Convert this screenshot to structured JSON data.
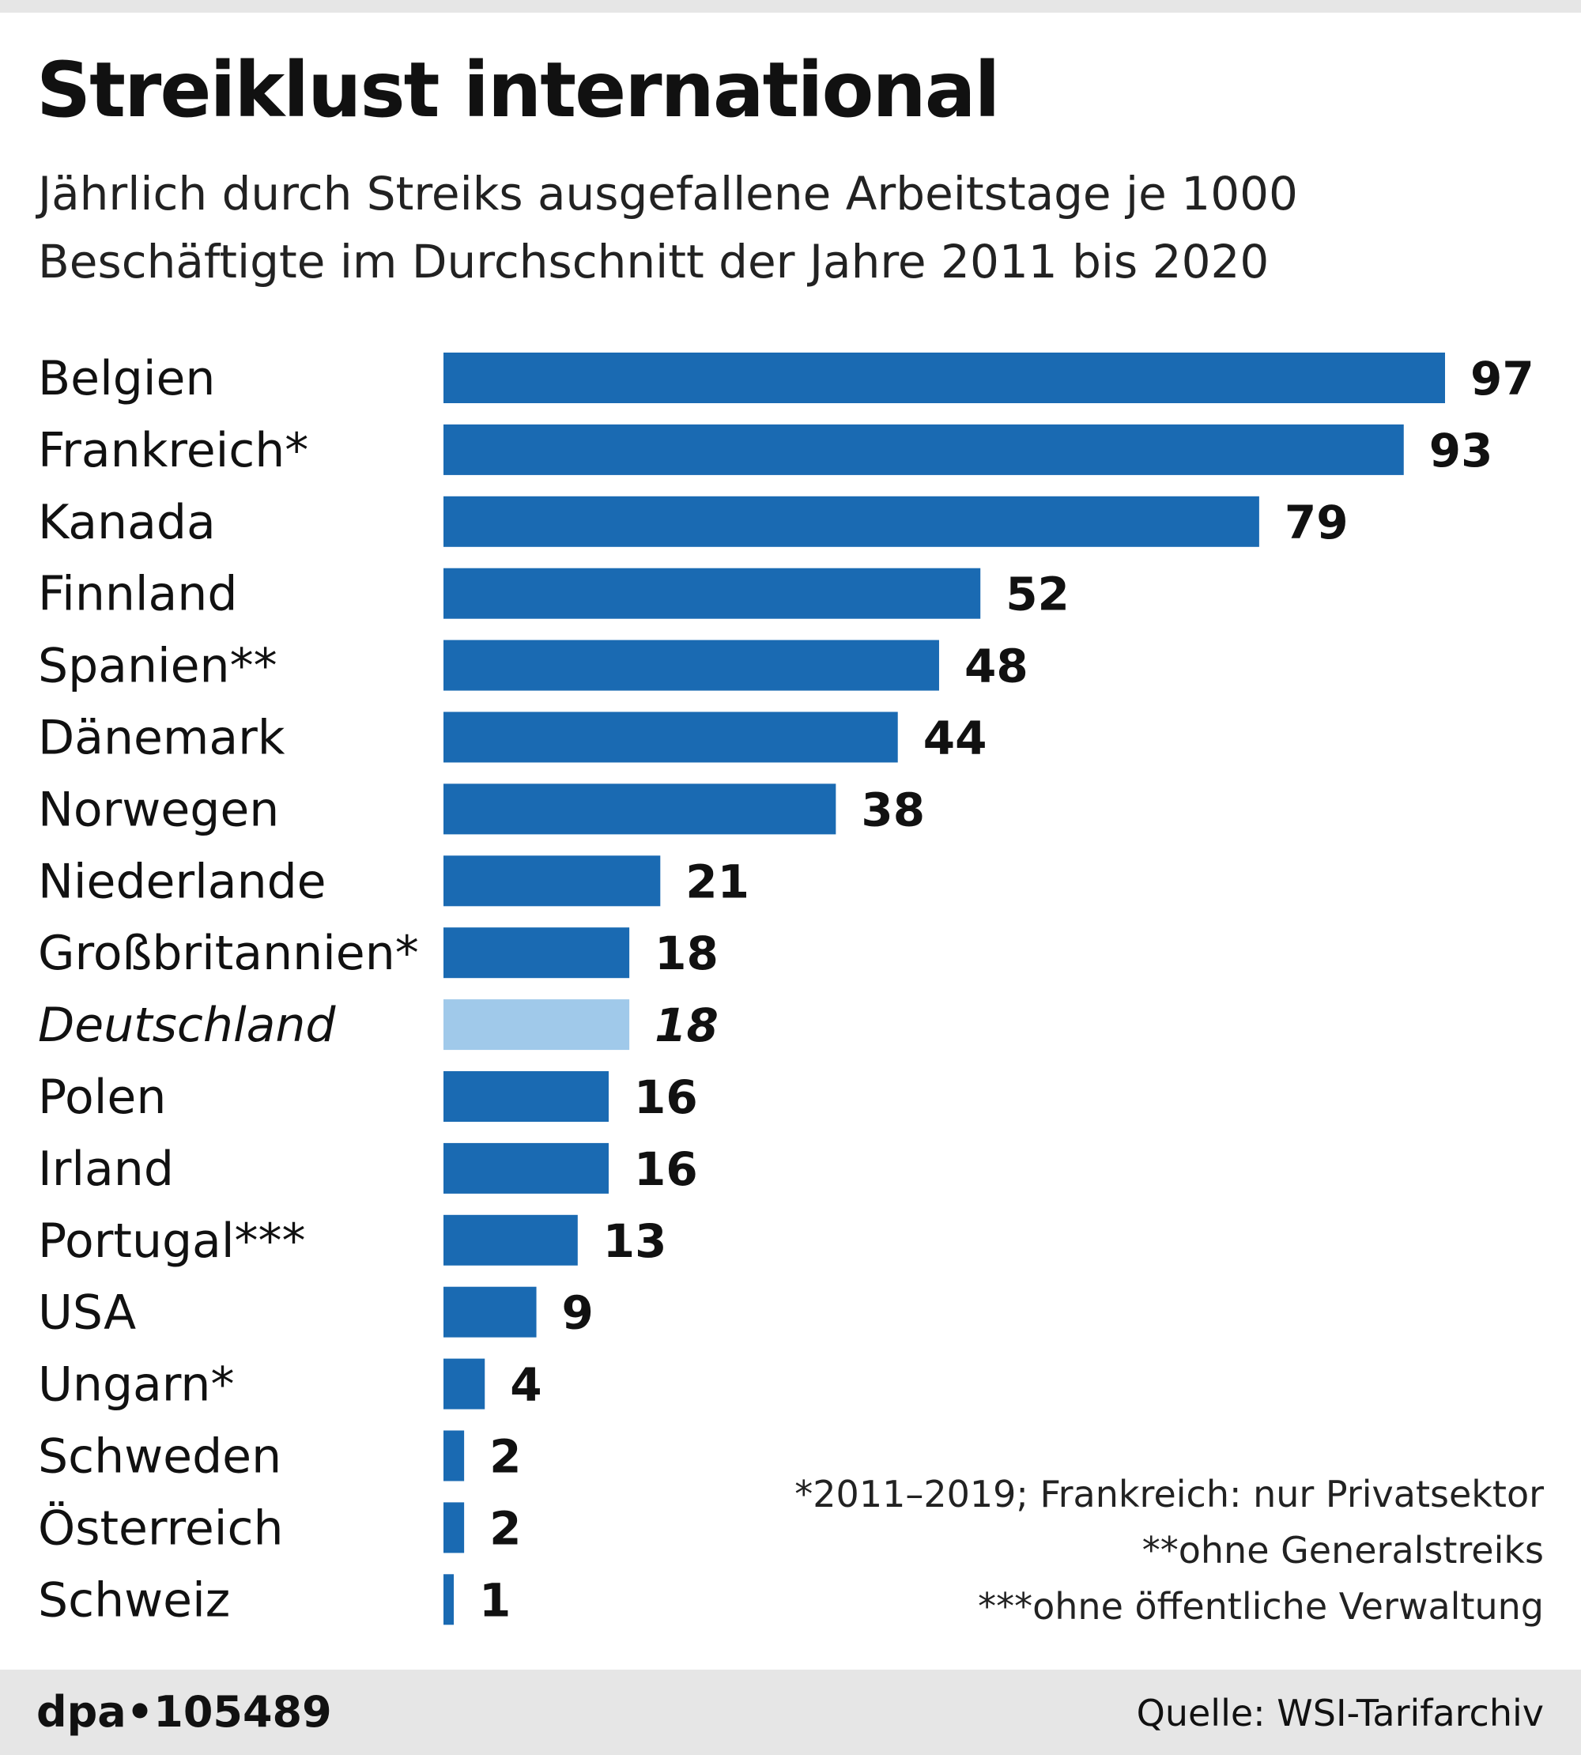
{
  "title": "Streiklust international",
  "subtitle_lines": [
    "Jährlich durch Streiks ausgefallene Arbeitstage je 1000",
    "Beschäftigte im Durchschnitt der Jahre 2011 bis 2020"
  ],
  "chart_data": {
    "type": "bar",
    "orientation": "horizontal",
    "title": "Streiklust international",
    "subtitle": "Jährlich durch Streiks ausgefallene Arbeitstage je 1000 Beschäftigte im Durchschnitt der Jahre 2011 bis 2020",
    "categories": [
      "Belgien",
      "Frankreich*",
      "Kanada",
      "Finnland",
      "Spanien**",
      "Dänemark",
      "Norwegen",
      "Niederlande",
      "Großbritannien*",
      "Deutschland",
      "Polen",
      "Irland",
      "Portugal***",
      "USA",
      "Ungarn*",
      "Schweden",
      "Österreich",
      "Schweiz"
    ],
    "values": [
      97,
      93,
      79,
      52,
      48,
      44,
      38,
      21,
      18,
      18,
      16,
      16,
      13,
      9,
      4,
      2,
      2,
      1
    ],
    "highlight": "Deutschland",
    "xlim": [
      0,
      97
    ],
    "grid": false,
    "colors": {
      "bar": "#1a6ab2",
      "highlight": "#a0c9ea"
    }
  },
  "footnotes": [
    "*2011–2019; Frankreich: nur Privatsektor",
    "**ohne Generalstreiks",
    "***ohne öffentliche Verwaltung"
  ],
  "footer": {
    "logo": "dpa•105489",
    "source": "Quelle: WSI-Tarifarchiv"
  }
}
